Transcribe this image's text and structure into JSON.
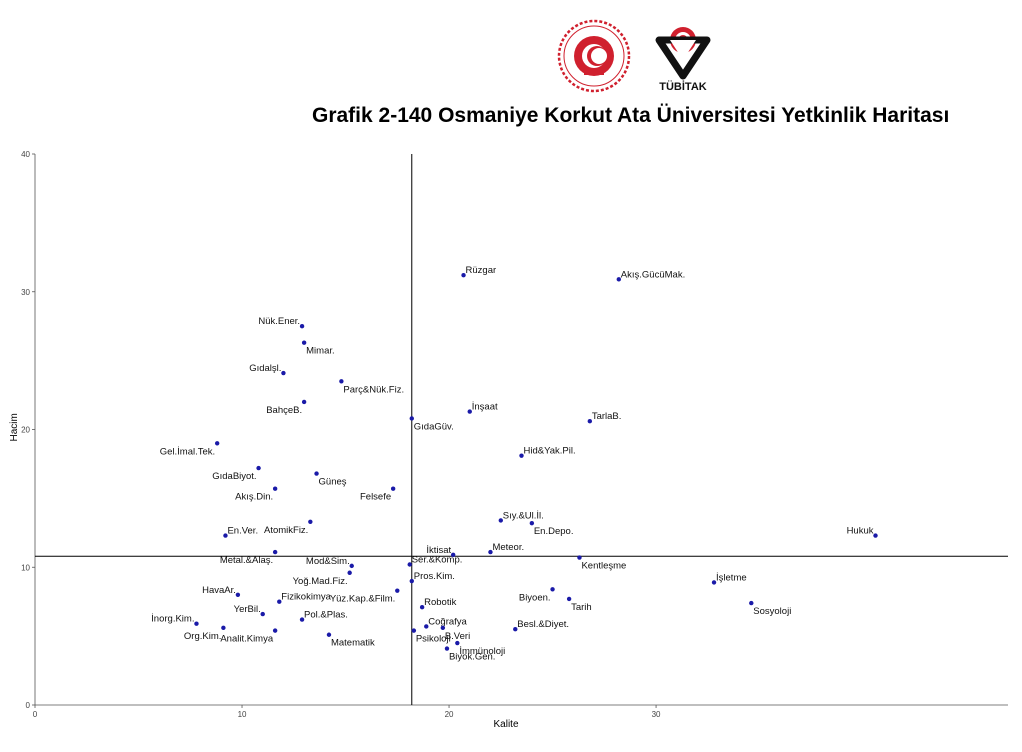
{
  "header": {
    "title": "Grafik 2-140 Osmaniye Korkut Ata Üniversitesi Yetkinlik Haritası",
    "logo_right_text": "TÜBİTAK",
    "logo_left_text": "SANAYİ VE TEKNOLOJİ BAKANLIĞI"
  },
  "colors": {
    "point": "#1a1aa8",
    "axis": "#000000",
    "logo_red": "#d0202e"
  },
  "chart_data": {
    "type": "scatter",
    "title": "",
    "xlabel": "Kalite",
    "ylabel": "Hacim",
    "xlim": [
      0,
      47
    ],
    "ylim": [
      0,
      40
    ],
    "xticks": [
      0,
      10,
      20,
      30
    ],
    "yticks": [
      0,
      10,
      20,
      30,
      40
    ],
    "reference_lines": {
      "x": 18.2,
      "y": 10.8
    },
    "grid": false,
    "points": [
      {
        "label": "Rüzgar",
        "x": 20.7,
        "y": 31.2
      },
      {
        "label": "Akış.GücüMak.",
        "x": 28.2,
        "y": 30.9
      },
      {
        "label": "Nük.Ener.",
        "x": 12.9,
        "y": 27.5
      },
      {
        "label": "Mimar.",
        "x": 13.0,
        "y": 26.3
      },
      {
        "label": "Gıdalşl.",
        "x": 12.0,
        "y": 24.1
      },
      {
        "label": "Parç&Nük.Fiz.",
        "x": 14.8,
        "y": 23.5
      },
      {
        "label": "BahçeB.",
        "x": 13.0,
        "y": 22.0
      },
      {
        "label": "İnşaat",
        "x": 21.0,
        "y": 21.3
      },
      {
        "label": "GıdaGüv.",
        "x": 18.2,
        "y": 20.8
      },
      {
        "label": "TarlaB.",
        "x": 26.8,
        "y": 20.6
      },
      {
        "label": "Gel.İmal.Tek.",
        "x": 8.8,
        "y": 19.0
      },
      {
        "label": "Hid&Yak.Pil.",
        "x": 23.5,
        "y": 18.1
      },
      {
        "label": "GıdaBiyot.",
        "x": 10.8,
        "y": 17.2
      },
      {
        "label": "Güneş",
        "x": 13.6,
        "y": 16.8
      },
      {
        "label": "Akış.Din.",
        "x": 11.6,
        "y": 15.7
      },
      {
        "label": "Felsefe",
        "x": 17.3,
        "y": 15.7
      },
      {
        "label": "Sıy.&Ul.İl.",
        "x": 22.5,
        "y": 13.4
      },
      {
        "label": "En.Depo.",
        "x": 24.0,
        "y": 13.2
      },
      {
        "label": "AtomikFiz.",
        "x": 13.3,
        "y": 13.3
      },
      {
        "label": "En.Ver.",
        "x": 9.2,
        "y": 12.3
      },
      {
        "label": "Hukuk",
        "x": 40.6,
        "y": 12.3
      },
      {
        "label": "Metal.&Alaş.",
        "x": 11.6,
        "y": 11.1
      },
      {
        "label": "İktisat",
        "x": 20.2,
        "y": 10.9
      },
      {
        "label": "Meteor.",
        "x": 22.0,
        "y": 11.1
      },
      {
        "label": "Kentleşme",
        "x": 26.3,
        "y": 10.7
      },
      {
        "label": "Mod&Sim.",
        "x": 15.3,
        "y": 10.1
      },
      {
        "label": "Ser.&Komp.",
        "x": 18.1,
        "y": 10.2
      },
      {
        "label": "Yoğ.Mad.Fiz.",
        "x": 15.2,
        "y": 9.6
      },
      {
        "label": "Pros.Kim.",
        "x": 18.2,
        "y": 9.0
      },
      {
        "label": "İşletme",
        "x": 32.8,
        "y": 8.9
      },
      {
        "label": "HavaAr.",
        "x": 9.8,
        "y": 8.0
      },
      {
        "label": "Biyoen.",
        "x": 25.0,
        "y": 8.4
      },
      {
        "label": "Yüz.Kap.&Film.",
        "x": 17.5,
        "y": 8.3
      },
      {
        "label": "Fizikokimya",
        "x": 11.8,
        "y": 7.5
      },
      {
        "label": "Robotik",
        "x": 18.7,
        "y": 7.1
      },
      {
        "label": "Tarih",
        "x": 25.8,
        "y": 7.7
      },
      {
        "label": "Sosyoloji",
        "x": 34.6,
        "y": 7.4
      },
      {
        "label": "Pol.&Plas.",
        "x": 12.9,
        "y": 6.2
      },
      {
        "label": "YerBil.",
        "x": 11.0,
        "y": 6.6
      },
      {
        "label": "İnorg.Kim.",
        "x": 7.8,
        "y": 5.9
      },
      {
        "label": "Coğrafya",
        "x": 18.9,
        "y": 5.7
      },
      {
        "label": "B.Veri",
        "x": 19.7,
        "y": 5.6
      },
      {
        "label": "Besl.&Diyet.",
        "x": 23.2,
        "y": 5.5
      },
      {
        "label": "Org.Kim.",
        "x": 9.1,
        "y": 5.6
      },
      {
        "label": "Analit.Kimya",
        "x": 11.6,
        "y": 5.4
      },
      {
        "label": "Matematik",
        "x": 14.2,
        "y": 5.1
      },
      {
        "label": "Psikoloji",
        "x": 18.3,
        "y": 5.4
      },
      {
        "label": "İmmünoloji",
        "x": 20.4,
        "y": 4.5
      },
      {
        "label": "Biyok.Gen.",
        "x": 19.9,
        "y": 4.1
      }
    ]
  }
}
